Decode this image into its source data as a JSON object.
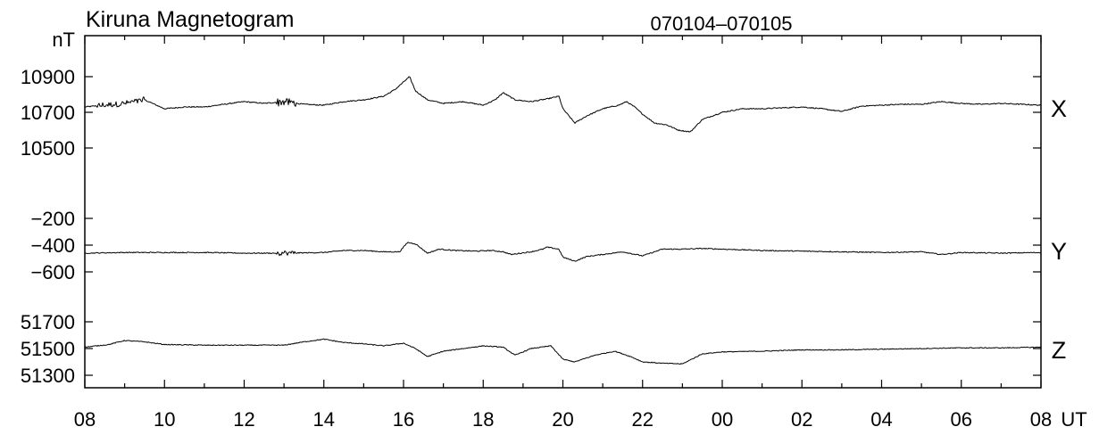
{
  "chart_data": {
    "type": "line",
    "title": "Kiruna Magnetogram",
    "date_range": "070104–070105",
    "y_unit": "nT",
    "x_unit": "UT",
    "x_tick_labels": [
      "08",
      "10",
      "12",
      "14",
      "16",
      "18",
      "20",
      "22",
      "00",
      "02",
      "04",
      "06",
      "08"
    ],
    "x_range_hours": [
      8,
      32
    ],
    "panels": [
      {
        "component": "X",
        "ticks": [
          10900,
          10700,
          10500
        ],
        "tick_labels": [
          "10900",
          "10700",
          "10500"
        ],
        "ylim": [
          10480,
          10980
        ],
        "keypoints": [
          [
            8.0,
            10730
          ],
          [
            8.5,
            10740
          ],
          [
            9.0,
            10750
          ],
          [
            9.5,
            10770
          ],
          [
            10.0,
            10720
          ],
          [
            10.5,
            10730
          ],
          [
            11.0,
            10730
          ],
          [
            11.5,
            10745
          ],
          [
            12.0,
            10760
          ],
          [
            12.5,
            10750
          ],
          [
            13.0,
            10760
          ],
          [
            13.5,
            10745
          ],
          [
            14.0,
            10740
          ],
          [
            14.5,
            10760
          ],
          [
            15.0,
            10770
          ],
          [
            15.5,
            10790
          ],
          [
            15.8,
            10830
          ],
          [
            16.0,
            10870
          ],
          [
            16.15,
            10900
          ],
          [
            16.3,
            10820
          ],
          [
            16.6,
            10770
          ],
          [
            17.0,
            10750
          ],
          [
            17.5,
            10760
          ],
          [
            18.0,
            10740
          ],
          [
            18.3,
            10770
          ],
          [
            18.5,
            10810
          ],
          [
            18.8,
            10770
          ],
          [
            19.2,
            10760
          ],
          [
            19.6,
            10775
          ],
          [
            19.9,
            10790
          ],
          [
            20.0,
            10720
          ],
          [
            20.3,
            10640
          ],
          [
            20.6,
            10680
          ],
          [
            21.0,
            10720
          ],
          [
            21.4,
            10740
          ],
          [
            21.6,
            10760
          ],
          [
            21.8,
            10730
          ],
          [
            22.0,
            10690
          ],
          [
            22.3,
            10640
          ],
          [
            22.6,
            10630
          ],
          [
            22.9,
            10600
          ],
          [
            23.2,
            10590
          ],
          [
            23.5,
            10660
          ],
          [
            24.0,
            10700
          ],
          [
            24.5,
            10720
          ],
          [
            25.0,
            10720
          ],
          [
            25.5,
            10725
          ],
          [
            26.0,
            10730
          ],
          [
            26.5,
            10720
          ],
          [
            27.0,
            10705
          ],
          [
            27.5,
            10735
          ],
          [
            28.0,
            10740
          ],
          [
            28.5,
            10745
          ],
          [
            29.0,
            10745
          ],
          [
            29.5,
            10760
          ],
          [
            30.0,
            10750
          ],
          [
            30.5,
            10745
          ],
          [
            31.0,
            10750
          ],
          [
            31.5,
            10745
          ],
          [
            32.0,
            10740
          ]
        ],
        "bursts": [
          [
            8.3,
            9.5,
            16
          ],
          [
            12.8,
            13.3,
            22
          ]
        ]
      },
      {
        "component": "Y",
        "ticks": [
          -200,
          -400,
          -600
        ],
        "tick_labels": [
          "−200",
          "−400",
          "−600"
        ],
        "ylim": [
          -720,
          -100
        ],
        "keypoints": [
          [
            8.0,
            -460
          ],
          [
            9.0,
            -455
          ],
          [
            10.0,
            -455
          ],
          [
            11.0,
            -455
          ],
          [
            12.0,
            -460
          ],
          [
            13.0,
            -460
          ],
          [
            14.0,
            -455
          ],
          [
            14.5,
            -440
          ],
          [
            15.0,
            -440
          ],
          [
            15.5,
            -450
          ],
          [
            15.9,
            -450
          ],
          [
            16.1,
            -380
          ],
          [
            16.3,
            -390
          ],
          [
            16.6,
            -460
          ],
          [
            16.9,
            -430
          ],
          [
            17.3,
            -440
          ],
          [
            17.8,
            -445
          ],
          [
            18.2,
            -440
          ],
          [
            18.5,
            -450
          ],
          [
            18.7,
            -470
          ],
          [
            19.2,
            -450
          ],
          [
            19.5,
            -430
          ],
          [
            19.6,
            -415
          ],
          [
            19.9,
            -430
          ],
          [
            20.0,
            -490
          ],
          [
            20.3,
            -520
          ],
          [
            20.6,
            -485
          ],
          [
            21.0,
            -470
          ],
          [
            21.5,
            -450
          ],
          [
            22.0,
            -480
          ],
          [
            22.5,
            -430
          ],
          [
            23.0,
            -430
          ],
          [
            23.5,
            -425
          ],
          [
            24.0,
            -430
          ],
          [
            24.5,
            -435
          ],
          [
            25.0,
            -440
          ],
          [
            26.0,
            -445
          ],
          [
            27.0,
            -450
          ],
          [
            28.0,
            -455
          ],
          [
            29.0,
            -450
          ],
          [
            29.5,
            -470
          ],
          [
            30.0,
            -455
          ],
          [
            31.0,
            -460
          ],
          [
            32.0,
            -455
          ]
        ],
        "bursts": [
          [
            12.8,
            13.3,
            18
          ]
        ]
      },
      {
        "component": "Z",
        "ticks": [
          51700,
          51500,
          51300
        ],
        "tick_labels": [
          "51700",
          "51500",
          "51300"
        ],
        "ylim": [
          51240,
          51760
        ],
        "keypoints": [
          [
            8.0,
            51510
          ],
          [
            8.6,
            51530
          ],
          [
            9.0,
            51560
          ],
          [
            9.5,
            51550
          ],
          [
            10.0,
            51530
          ],
          [
            11.0,
            51525
          ],
          [
            12.0,
            51525
          ],
          [
            13.0,
            51525
          ],
          [
            13.5,
            51550
          ],
          [
            14.0,
            51570
          ],
          [
            14.5,
            51545
          ],
          [
            15.0,
            51535
          ],
          [
            15.5,
            51520
          ],
          [
            16.0,
            51540
          ],
          [
            16.3,
            51500
          ],
          [
            16.6,
            51440
          ],
          [
            17.0,
            51480
          ],
          [
            17.5,
            51500
          ],
          [
            18.0,
            51520
          ],
          [
            18.5,
            51510
          ],
          [
            18.8,
            51450
          ],
          [
            19.2,
            51500
          ],
          [
            19.7,
            51520
          ],
          [
            20.0,
            51420
          ],
          [
            20.3,
            51400
          ],
          [
            20.8,
            51450
          ],
          [
            21.3,
            51480
          ],
          [
            21.7,
            51440
          ],
          [
            22.0,
            51400
          ],
          [
            22.5,
            51390
          ],
          [
            23.0,
            51385
          ],
          [
            23.5,
            51460
          ],
          [
            24.0,
            51475
          ],
          [
            25.0,
            51480
          ],
          [
            26.0,
            51490
          ],
          [
            27.0,
            51490
          ],
          [
            28.0,
            51495
          ],
          [
            29.0,
            51500
          ],
          [
            30.0,
            51505
          ],
          [
            31.0,
            51505
          ],
          [
            32.0,
            51510
          ]
        ],
        "bursts": []
      }
    ]
  }
}
